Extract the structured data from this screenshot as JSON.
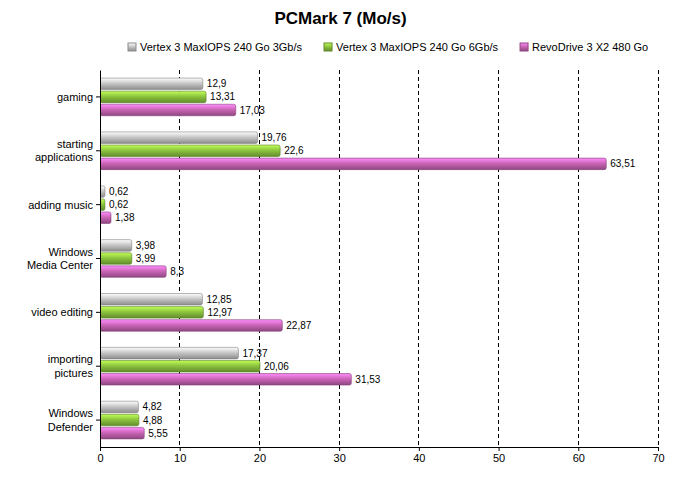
{
  "chart_data": {
    "type": "bar",
    "orientation": "horizontal",
    "title": "PCMark 7 (Mo/s)",
    "categories": [
      "gaming",
      "starting\napplications",
      "adding music",
      "Windows\nMedia Center",
      "video editing",
      "importing\npictures",
      "Windows\nDefender"
    ],
    "series": [
      {
        "name": "Vertex 3 MaxIOPS 240 Go 3Gb/s",
        "color": "#c8c8c8",
        "values": [
          12.9,
          19.76,
          0.62,
          3.98,
          12.85,
          17.37,
          4.82
        ],
        "value_labels": [
          "12,9",
          "19,76",
          "0,62",
          "3,98",
          "12,85",
          "17,37",
          "4,82"
        ]
      },
      {
        "name": "Vertex 3 MaxIOPS 240 Go 6Gb/s",
        "color": "#8dc63f",
        "values": [
          13.31,
          22.6,
          0.62,
          3.99,
          12.97,
          20.06,
          4.88
        ],
        "value_labels": [
          "13,31",
          "22,6",
          "0,62",
          "3,99",
          "12,97",
          "20,06",
          "4,88"
        ]
      },
      {
        "name": "RevoDrive 3 X2 480 Go",
        "color": "#cc66b8",
        "values": [
          17.03,
          63.51,
          1.38,
          8.3,
          22.87,
          31.53,
          5.55
        ],
        "value_labels": [
          "17,03",
          "63,51",
          "1,38",
          "8,3",
          "22,87",
          "31,53",
          "5,55"
        ]
      }
    ],
    "xlim": [
      0,
      70
    ],
    "xticks": [
      0,
      10,
      20,
      30,
      40,
      50,
      60,
      70
    ],
    "grid": true,
    "legend": "top",
    "data_labels": true
  }
}
